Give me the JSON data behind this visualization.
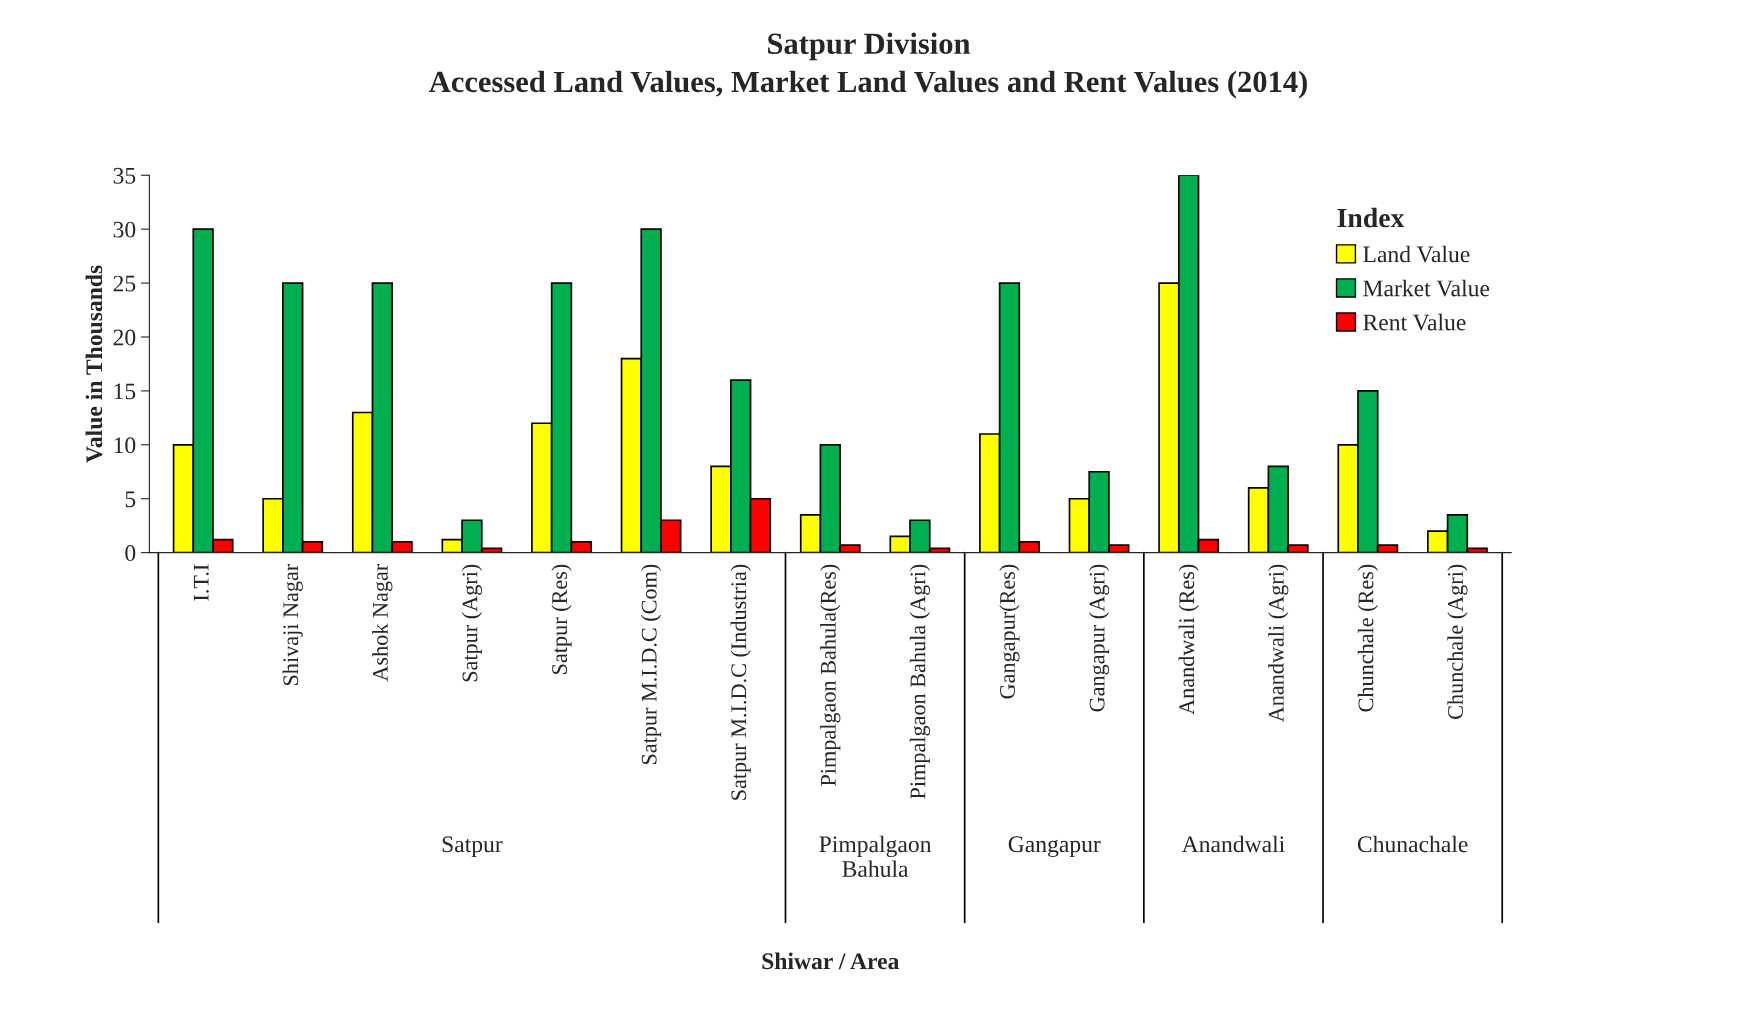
{
  "chart_data": {
    "type": "bar",
    "title": "Satpur Division",
    "subtitle": "Accessed Land Values, Market Land Values and Rent Values (2014)",
    "ylabel": "Value in Thousands",
    "legend_title": "Index",
    "categories": [
      "I.T.I",
      "Shivaji Nagar",
      "Ashok Nagar",
      "Satpur (Agri)",
      "Satpur (Res)",
      "Satpur M.I.D.C (Com)",
      "Satpur M.I.D.C (Industria)",
      "Pimpalgaon Bahula(Res)",
      "Pimpalgaon Bahula (Agri)",
      "Gangapur(Res)",
      "Gangapur (Agri)",
      "Anandwali (Res)",
      "Anandwali (Agri)",
      "Chunchale (Res)",
      "Chunchale (Agri)"
    ],
    "series": [
      {
        "name": "Land Value",
        "color": "#ffff00",
        "values": [
          10,
          5,
          13,
          1.2,
          12,
          18,
          8,
          3.5,
          1.5,
          11,
          5,
          25,
          6,
          10,
          2
        ]
      },
      {
        "name": "Market Value",
        "color": "#00b050",
        "values": [
          30,
          25,
          25,
          3,
          25,
          30,
          16,
          10,
          3,
          25,
          7.5,
          35,
          8,
          15,
          3.5
        ]
      },
      {
        "name": "Rent Value",
        "color": "#ff0000",
        "values": [
          1.2,
          1,
          1,
          0.4,
          1,
          3,
          5,
          0.7,
          0.4,
          1,
          0.7,
          1.2,
          0.7,
          0.7,
          0.4
        ]
      }
    ],
    "annotations": [
      "Satpur",
      "Pimpalgaon\nBahula",
      "Gangapur",
      "Anandwali",
      "Chunachale",
      "Shiwar / Area"
    ],
    "ylim": [
      0,
      35
    ],
    "yticks": [
      0,
      5,
      10,
      15,
      20,
      25,
      30,
      35
    ],
    "grid": false,
    "legend": "top right"
  }
}
